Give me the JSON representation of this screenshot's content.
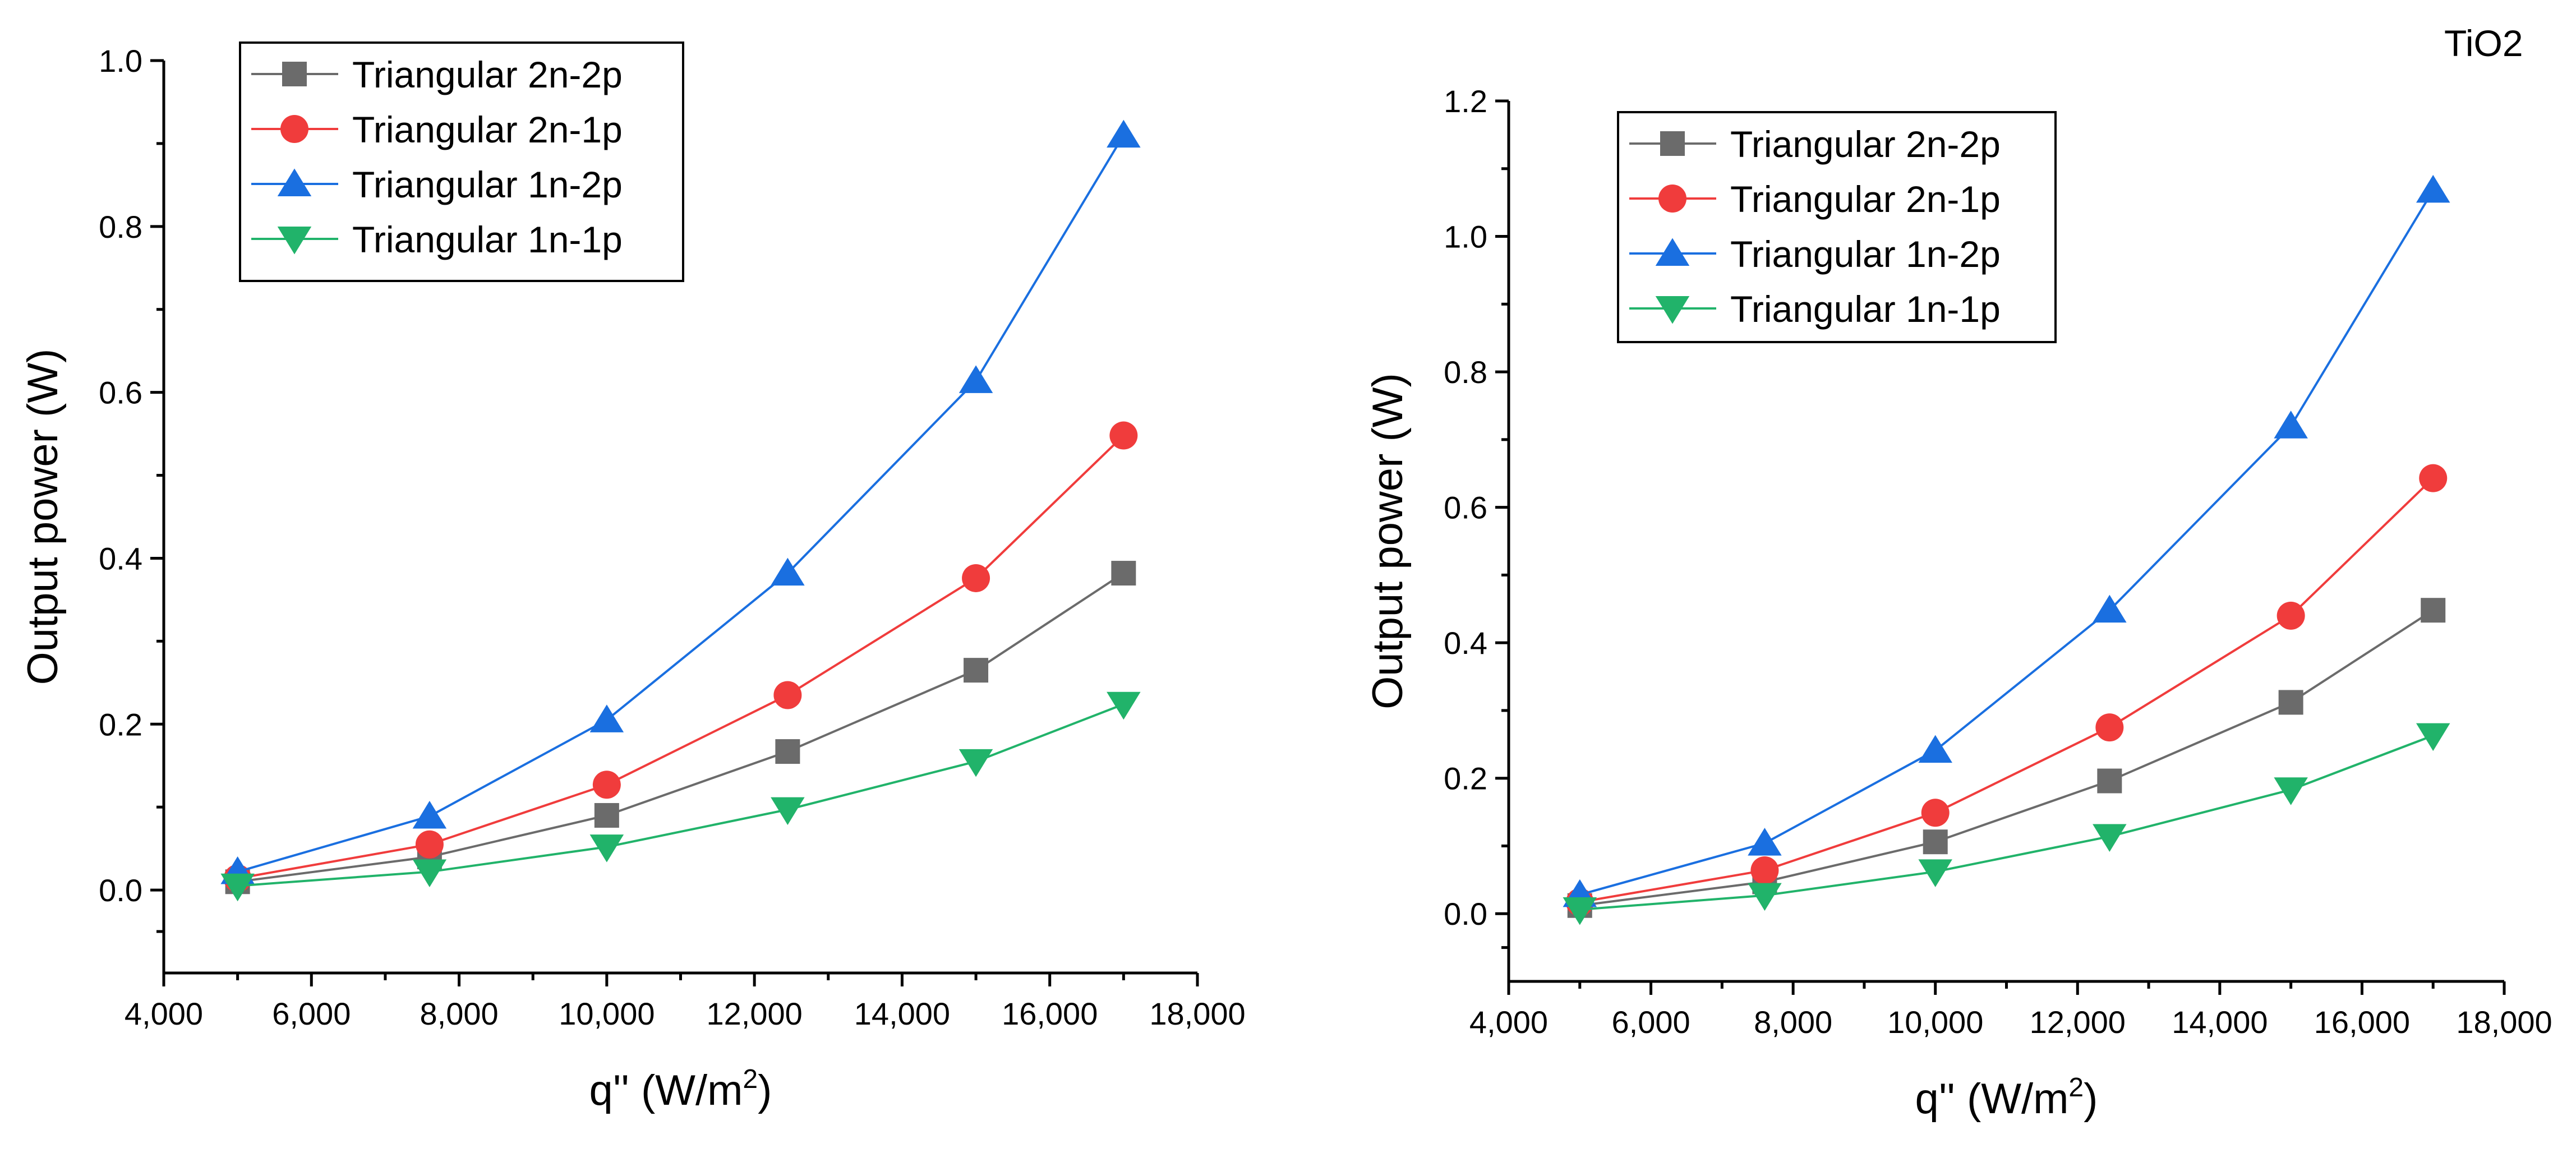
{
  "colors": {
    "Triangular 2n-2p": "#6b6b6b",
    "Triangular 2n-1p": "#f03c3c",
    "Triangular 1n-2p": "#1a6fe0",
    "Triangular 1n-1p": "#21b36a"
  },
  "chart_data": [
    {
      "type": "line",
      "title": "",
      "xlabel": "q'' (W/m",
      "xlabel_sup": "2",
      "xlabel_end": ")",
      "ylabel": "Output power (W)",
      "xlim": [
        4000,
        18000
      ],
      "ylim": [
        -0.1,
        1.0
      ],
      "xticks": [
        4000,
        6000,
        8000,
        10000,
        12000,
        14000,
        16000,
        18000
      ],
      "xtick_labels": [
        "4,000",
        "6,000",
        "8,000",
        "10,000",
        "12,000",
        "14,000",
        "16,000",
        "18,000"
      ],
      "yticks": [
        0.0,
        0.2,
        0.4,
        0.6,
        0.8,
        1.0
      ],
      "ytick_labels": [
        "0.0",
        "0.2",
        "0.4",
        "0.6",
        "0.8",
        "1.0"
      ],
      "legend_position": "top-left",
      "annotation": "",
      "x": [
        5000,
        7600,
        10000,
        12450,
        15000,
        17000
      ],
      "series": [
        {
          "name": "Triangular 2n-2p",
          "marker": "square",
          "values": [
            0.01,
            0.04,
            0.09,
            0.167,
            0.265,
            0.382
          ]
        },
        {
          "name": "Triangular 2n-1p",
          "marker": "circle",
          "values": [
            0.014,
            0.055,
            0.127,
            0.235,
            0.376,
            0.548
          ]
        },
        {
          "name": "Triangular 1n-2p",
          "marker": "triangle-up",
          "values": [
            0.022,
            0.089,
            0.205,
            0.382,
            0.614,
            0.91
          ]
        },
        {
          "name": "Triangular 1n-1p",
          "marker": "triangle-down",
          "values": [
            0.005,
            0.022,
            0.052,
            0.097,
            0.155,
            0.224
          ]
        }
      ]
    },
    {
      "type": "line",
      "title": "",
      "xlabel": "q'' (W/m",
      "xlabel_sup": "2",
      "xlabel_end": ")",
      "ylabel": "Output power (W)",
      "xlim": [
        4000,
        18000
      ],
      "ylim": [
        -0.1,
        1.2
      ],
      "xticks": [
        4000,
        6000,
        8000,
        10000,
        12000,
        14000,
        16000,
        18000
      ],
      "xtick_labels": [
        "4,000",
        "6,000",
        "8,000",
        "10,000",
        "12,000",
        "14,000",
        "16,000",
        "18,000"
      ],
      "yticks": [
        0.0,
        0.2,
        0.4,
        0.6,
        0.8,
        1.0,
        1.2
      ],
      "ytick_labels": [
        "0.0",
        "0.2",
        "0.4",
        "0.6",
        "0.8",
        "1.0",
        "1.2"
      ],
      "legend_position": "top-left",
      "annotation": "TiO2",
      "x": [
        5000,
        7600,
        10000,
        12450,
        15000,
        17000
      ],
      "series": [
        {
          "name": "Triangular 2n-2p",
          "marker": "square",
          "values": [
            0.012,
            0.047,
            0.106,
            0.196,
            0.312,
            0.448
          ]
        },
        {
          "name": "Triangular 2n-1p",
          "marker": "circle",
          "values": [
            0.017,
            0.064,
            0.149,
            0.275,
            0.44,
            0.643
          ]
        },
        {
          "name": "Triangular 1n-2p",
          "marker": "triangle-up",
          "values": [
            0.028,
            0.104,
            0.241,
            0.448,
            0.72,
            1.068
          ]
        },
        {
          "name": "Triangular 1n-1p",
          "marker": "triangle-down",
          "values": [
            0.006,
            0.027,
            0.062,
            0.114,
            0.183,
            0.263
          ]
        }
      ]
    }
  ]
}
